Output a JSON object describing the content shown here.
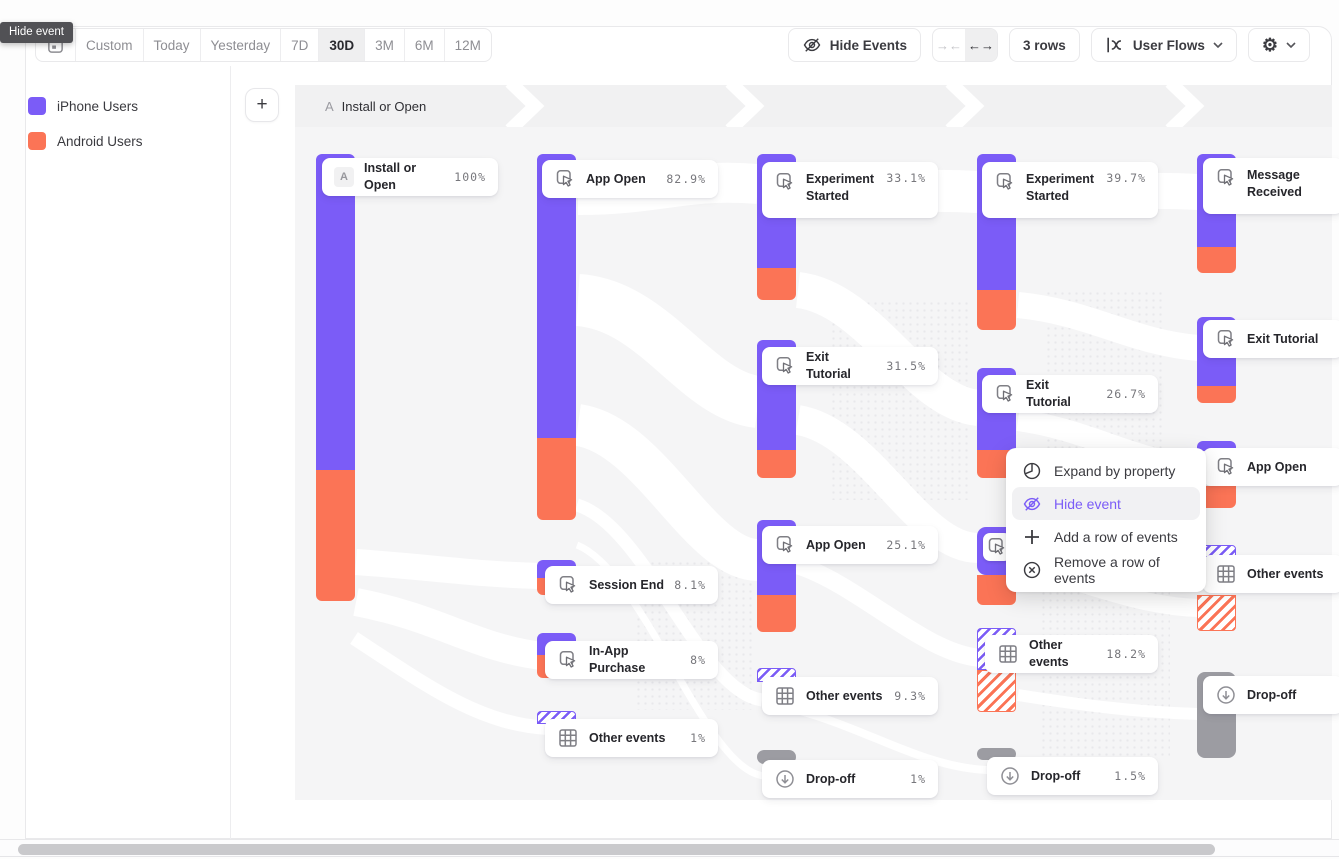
{
  "tooltip": {
    "label": "Hide event"
  },
  "toolbar": {
    "date_ranges": [
      "Custom",
      "Today",
      "Yesterday",
      "7D",
      "30D",
      "3M",
      "6M",
      "12M"
    ],
    "selected_range": "30D",
    "hide_events_label": "Hide Events",
    "collapse_arrows": "→←",
    "expand_arrows": "←→",
    "rows_label": "3 rows",
    "view_selector_label": "User Flows",
    "gear_glyph": "⚙"
  },
  "legend": {
    "items": [
      {
        "label": "iPhone Users",
        "color": "#7B5CF7"
      },
      {
        "label": "Android Users",
        "color": "#FB7456"
      }
    ]
  },
  "flow_header": {
    "step_letter": "A",
    "step_label": "Install or Open"
  },
  "add_button_label": "+",
  "colors": {
    "purple": "#7B5CF7",
    "orange": "#FB7456",
    "dropoff_gray": "#9C9CA2",
    "menu_active": "#7B5CF7"
  },
  "context_menu": {
    "items": [
      {
        "label": "Expand by property",
        "icon": "expand-property-icon",
        "active": false
      },
      {
        "label": "Hide event",
        "icon": "eye-off-icon",
        "active": true
      },
      {
        "label": "Add a row of events",
        "icon": "plus-icon",
        "active": false
      },
      {
        "label": "Remove a row of events",
        "icon": "circle-x-icon",
        "active": false
      }
    ]
  },
  "flow": {
    "type": "sankey-user-flow",
    "columns": [
      {
        "events": [
          {
            "label": "Install or Open",
            "pct": "100%",
            "icon": "letter-a-badge"
          }
        ]
      },
      {
        "events": [
          {
            "label": "App Open",
            "pct": "82.9%",
            "icon": "click-icon"
          },
          {
            "label": "Session End",
            "pct": "8.1%",
            "icon": "click-icon"
          },
          {
            "label": "In-App Purchase",
            "pct": "8%",
            "icon": "click-icon"
          },
          {
            "label": "Other events",
            "pct": "1%",
            "icon": "grid-icon"
          }
        ]
      },
      {
        "events": [
          {
            "label": "Experiment Started",
            "pct": "33.1%",
            "icon": "click-icon"
          },
          {
            "label": "Exit Tutorial",
            "pct": "31.5%",
            "icon": "click-icon"
          },
          {
            "label": "App Open",
            "pct": "25.1%",
            "icon": "click-icon"
          },
          {
            "label": "Other events",
            "pct": "9.3%",
            "icon": "grid-icon"
          },
          {
            "label": "Drop-off",
            "pct": "1%",
            "icon": "dropoff-icon"
          }
        ]
      },
      {
        "events": [
          {
            "label": "Experiment Started",
            "pct": "39.7%",
            "icon": "click-icon"
          },
          {
            "label": "Exit Tutorial",
            "pct": "26.7%",
            "icon": "click-icon"
          },
          {
            "label": "Other events",
            "pct": "18.2%",
            "icon": "grid-icon"
          },
          {
            "label": "Drop-off",
            "pct": "1.5%",
            "icon": "dropoff-icon"
          }
        ]
      },
      {
        "events": [
          {
            "label": "Message Received",
            "pct": "",
            "icon": "click-icon"
          },
          {
            "label": "Exit Tutorial",
            "pct": "",
            "icon": "click-icon"
          },
          {
            "label": "App Open",
            "pct": "",
            "icon": "click-icon"
          },
          {
            "label": "Other events",
            "pct": "",
            "icon": "grid-icon"
          },
          {
            "label": "Drop-off",
            "pct": "",
            "icon": "dropoff-icon"
          }
        ]
      }
    ]
  }
}
